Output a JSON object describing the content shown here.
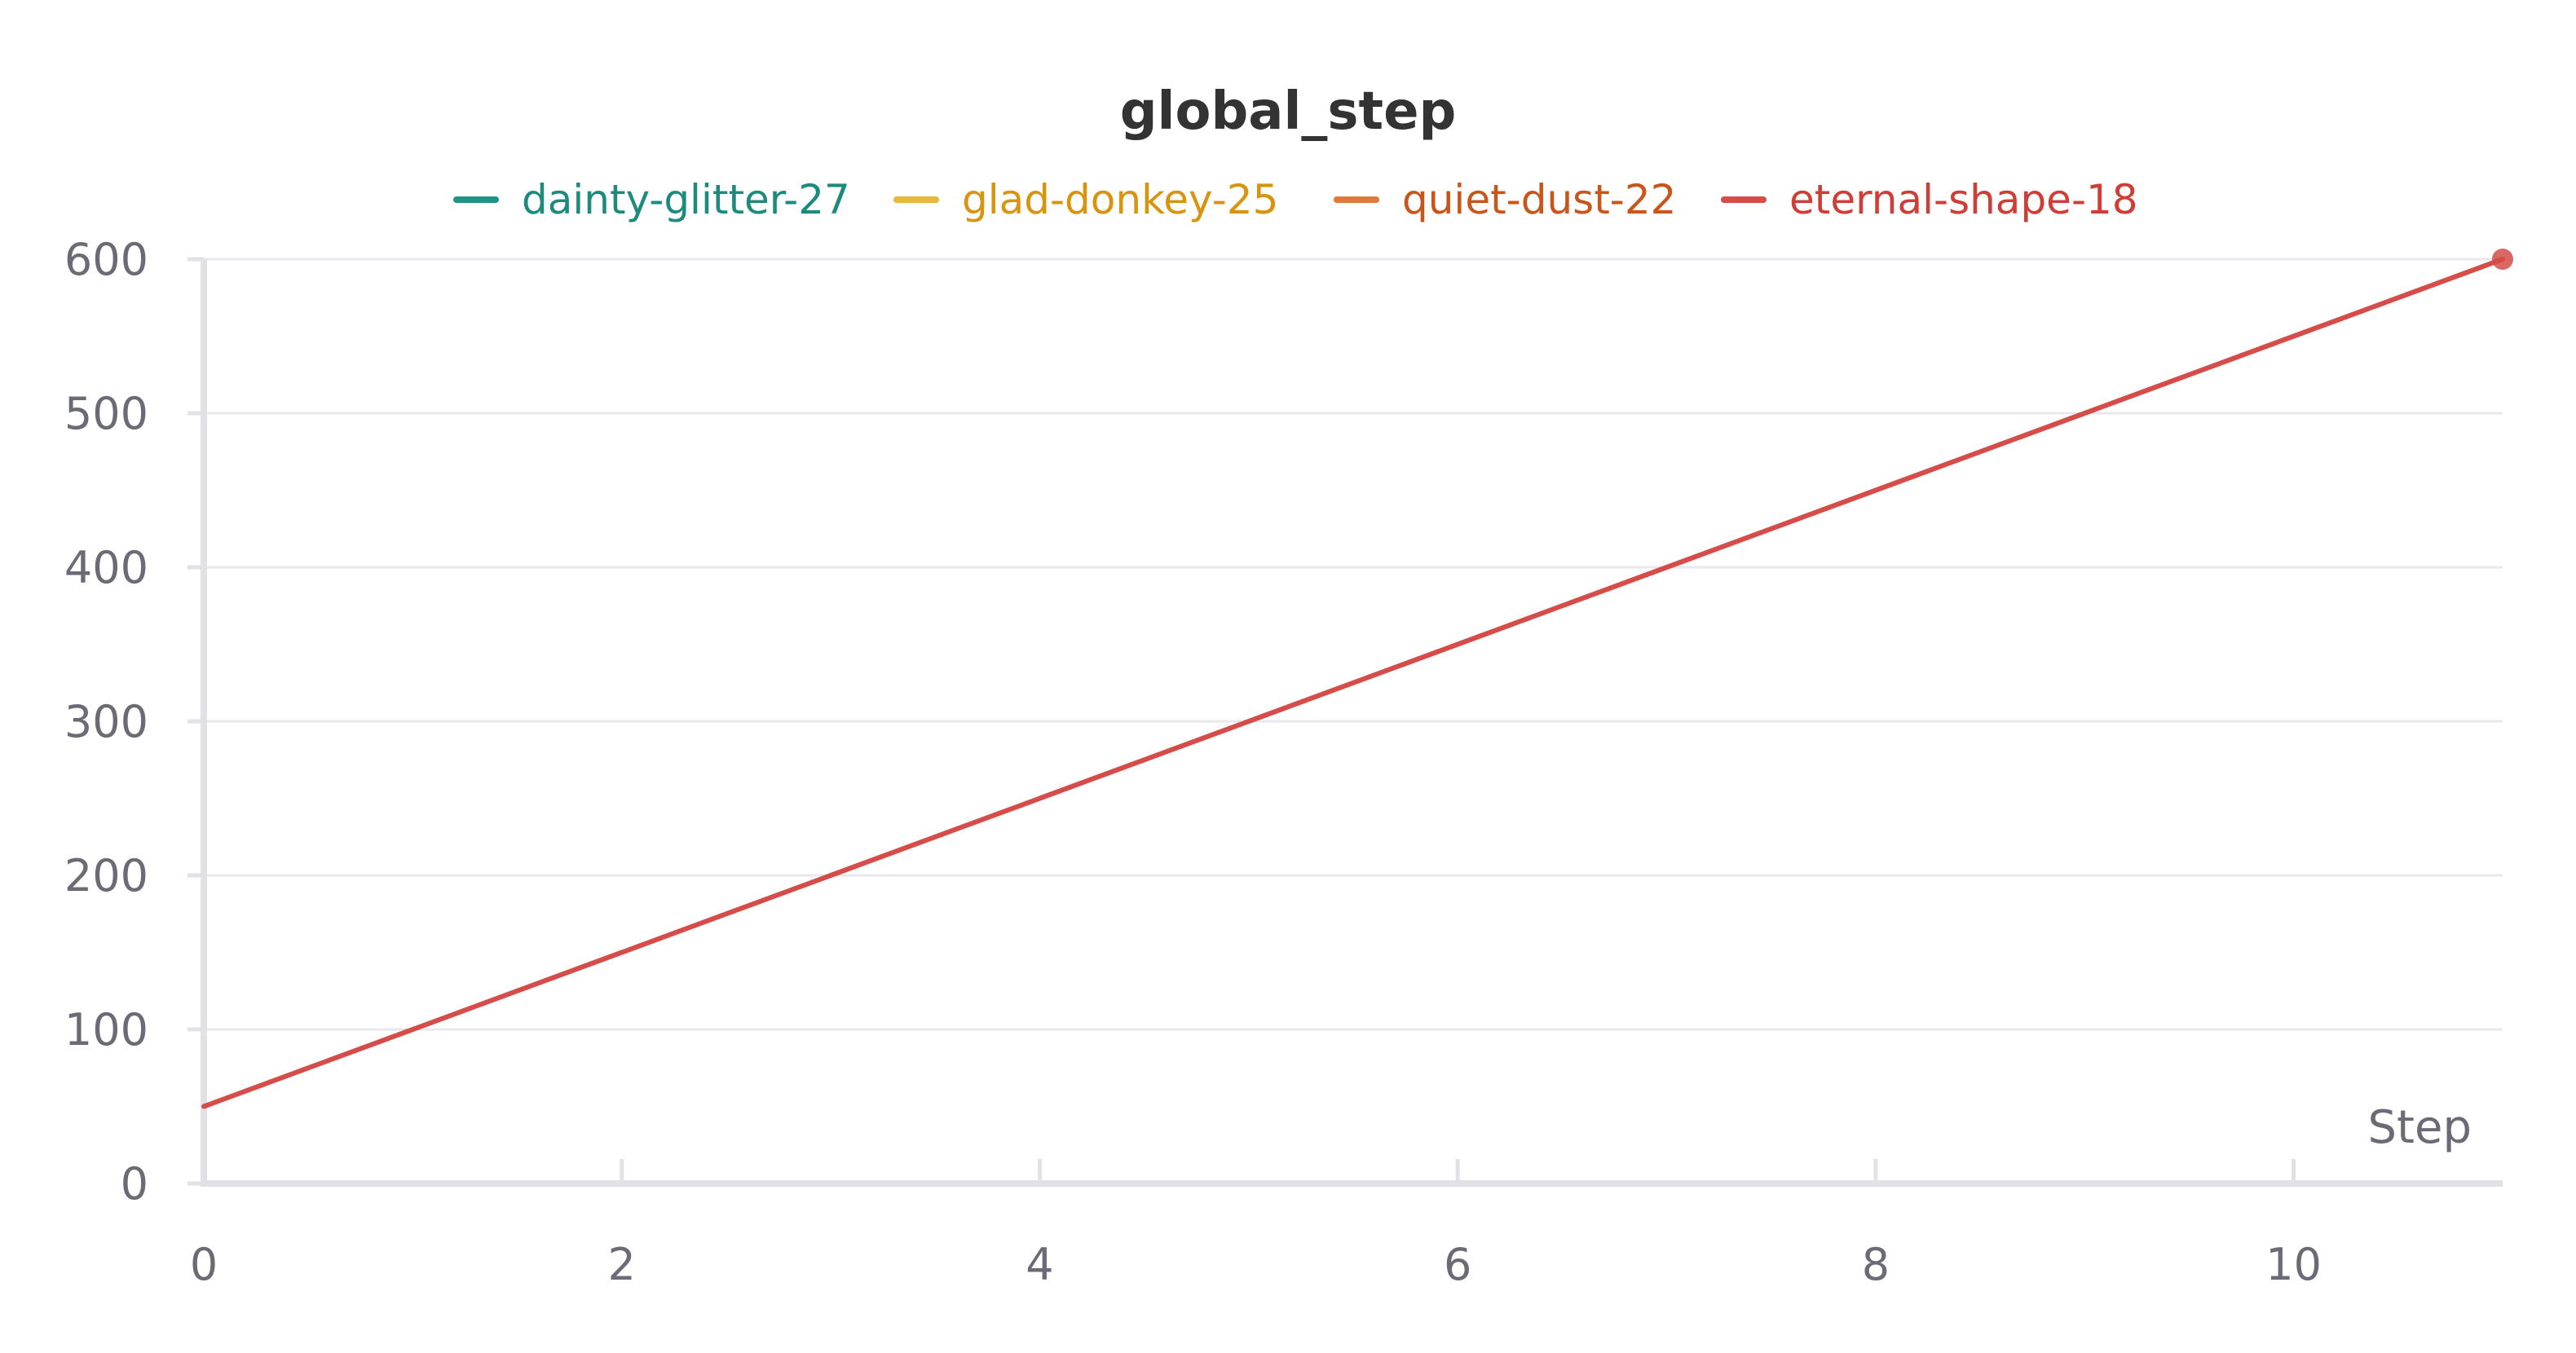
{
  "chart_data": {
    "type": "line",
    "title": "global_step",
    "xlabel": "Step",
    "ylabel": "",
    "xlim": [
      0,
      11
    ],
    "ylim": [
      0,
      600
    ],
    "x_ticks": [
      0,
      2,
      4,
      6,
      8,
      10
    ],
    "y_ticks": [
      0,
      100,
      200,
      300,
      400,
      500,
      600
    ],
    "grid": true,
    "legend_position": "top",
    "legend": [
      {
        "name": "dainty-glitter-27",
        "color": "#229487",
        "text_color": "#1d8a7e"
      },
      {
        "name": "glad-donkey-25",
        "color": "#e8b838",
        "text_color": "#d9940e"
      },
      {
        "name": "quiet-dust-22",
        "color": "#e07a3c",
        "text_color": "#c8561a"
      },
      {
        "name": "eternal-shape-18",
        "color": "#d54c48",
        "text_color": "#d03c36"
      }
    ],
    "series": [
      {
        "name": "eternal-shape-18",
        "color": "#d54c48",
        "x": [
          0,
          1,
          2,
          3,
          4,
          5,
          6,
          7,
          8,
          9,
          10,
          11
        ],
        "y": [
          50,
          100,
          150,
          200,
          250,
          300,
          350,
          400,
          450,
          500,
          550,
          600
        ],
        "end_marker": true
      }
    ]
  }
}
